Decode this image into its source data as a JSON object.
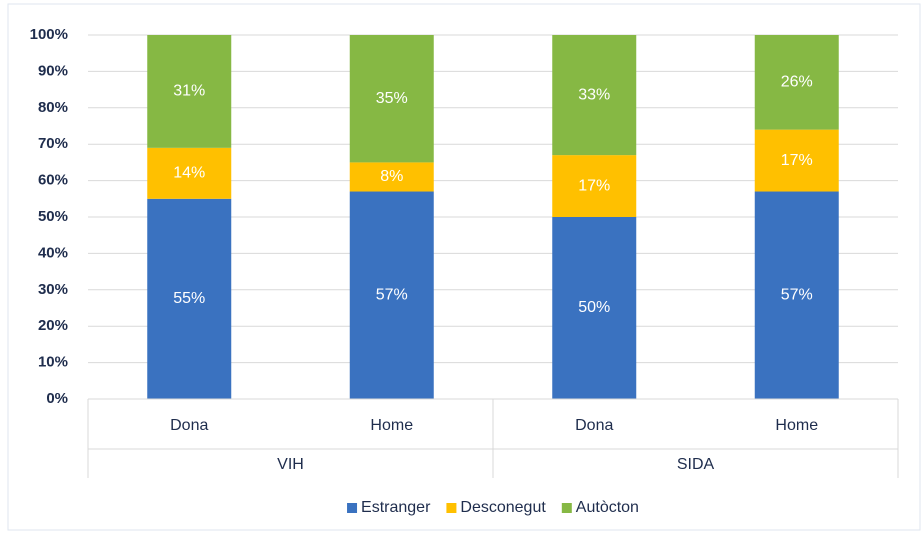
{
  "chart_data": {
    "type": "stacked_bar",
    "categories": [
      "Dona",
      "Home",
      "Dona",
      "Home"
    ],
    "groups": [
      "VIH",
      "SIDA"
    ],
    "series": [
      {
        "name": "Estranger",
        "color": "#3a72c0",
        "values": [
          55,
          57,
          50,
          57
        ],
        "value_labels": [
          "55%",
          "57%",
          "50%",
          "57%"
        ]
      },
      {
        "name": "Desconegut",
        "color": "#ffc000",
        "values": [
          14,
          8,
          17,
          17
        ],
        "value_labels": [
          "14%",
          "8%",
          "17%",
          "17%"
        ]
      },
      {
        "name": "Autòcton",
        "color": "#86b844",
        "values": [
          31,
          35,
          33,
          26
        ],
        "value_labels": [
          "31%",
          "35%",
          "33%",
          "26%"
        ]
      }
    ],
    "ylim": [
      0,
      100
    ],
    "yticks": [
      {
        "value": 0,
        "label": "0%"
      },
      {
        "value": 10,
        "label": "10%"
      },
      {
        "value": 20,
        "label": "20%"
      },
      {
        "value": 30,
        "label": "30%"
      },
      {
        "value": 40,
        "label": "40%"
      },
      {
        "value": 50,
        "label": "50%"
      },
      {
        "value": 60,
        "label": "60%"
      },
      {
        "value": 70,
        "label": "70%"
      },
      {
        "value": 80,
        "label": "80%"
      },
      {
        "value": 90,
        "label": "90%"
      },
      {
        "value": 100,
        "label": "100%"
      }
    ],
    "grid": true,
    "legend": "bottom"
  }
}
